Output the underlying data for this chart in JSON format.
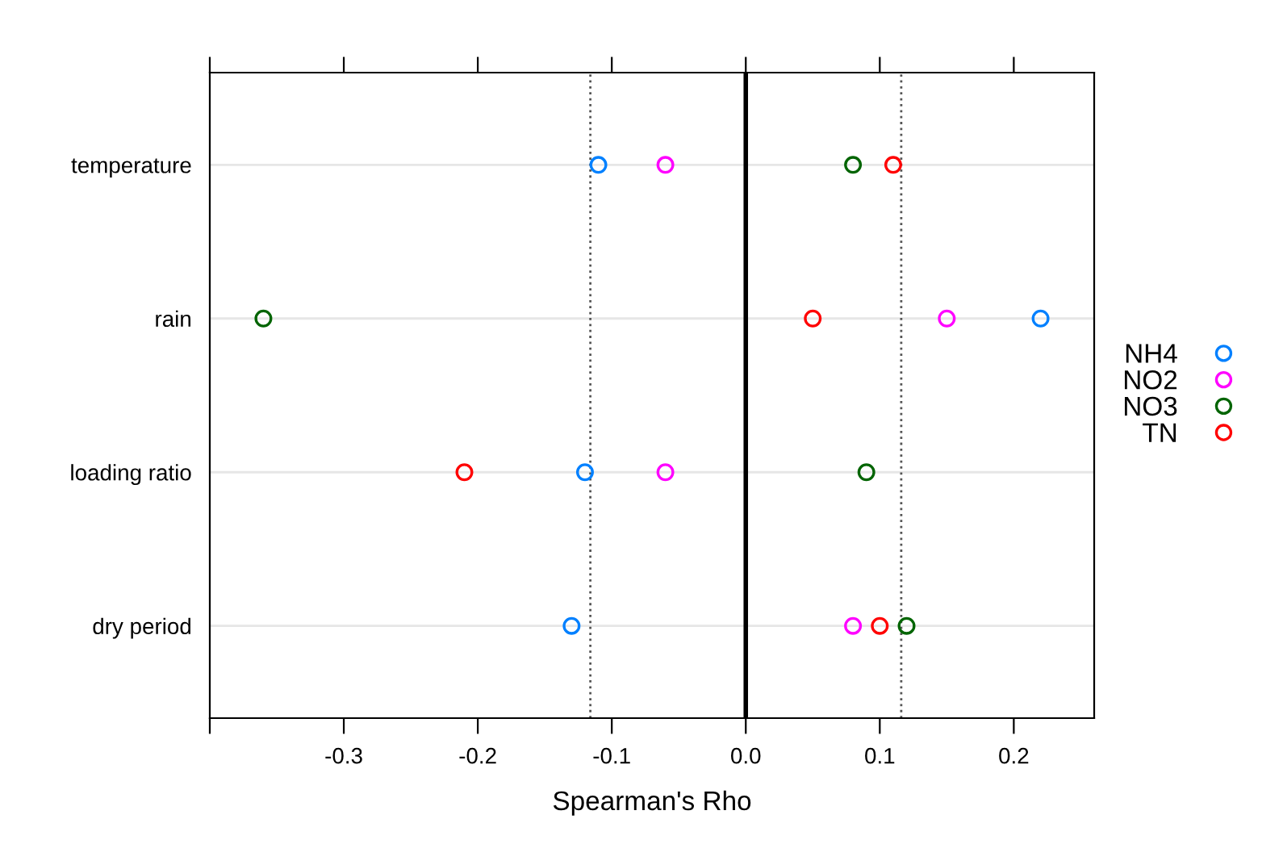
{
  "chart_data": {
    "type": "scatter",
    "orientation": "horizontal",
    "xlabel": "Spearman's Rho",
    "categories": [
      "temperature",
      "rain",
      "loading ratio",
      "dry period"
    ],
    "series": [
      {
        "name": "NH4",
        "color": "#0080ff",
        "values": [
          -0.11,
          0.22,
          -0.12,
          -0.13
        ]
      },
      {
        "name": "NO2",
        "color": "#ff00ff",
        "values": [
          -0.06,
          0.15,
          -0.06,
          0.08
        ]
      },
      {
        "name": "NO3",
        "color": "#006400",
        "values": [
          0.08,
          -0.36,
          0.09,
          0.12
        ]
      },
      {
        "name": "TN",
        "color": "#ff0000",
        "values": [
          0.11,
          0.05,
          -0.21,
          0.1
        ]
      }
    ],
    "xlim": [
      -0.4,
      0.26
    ],
    "xticks": [
      {
        "value": -0.4,
        "label": null
      },
      -0.3,
      -0.2,
      -0.1,
      {
        "value": 0.0,
        "label": "0.0"
      },
      0.1,
      0.2
    ],
    "ref_lines": [
      {
        "axis": "x",
        "value": 0,
        "label": null,
        "color": "#000000",
        "line_style": "solid"
      },
      {
        "axis": "x",
        "value": -0.116,
        "label": null,
        "color": "#555555",
        "line_style": "dotted"
      },
      {
        "axis": "x",
        "value": 0.116,
        "label": null,
        "color": "#555555",
        "line_style": "dotted"
      }
    ],
    "grid": "y",
    "legend": "right",
    "marker": "circle"
  }
}
